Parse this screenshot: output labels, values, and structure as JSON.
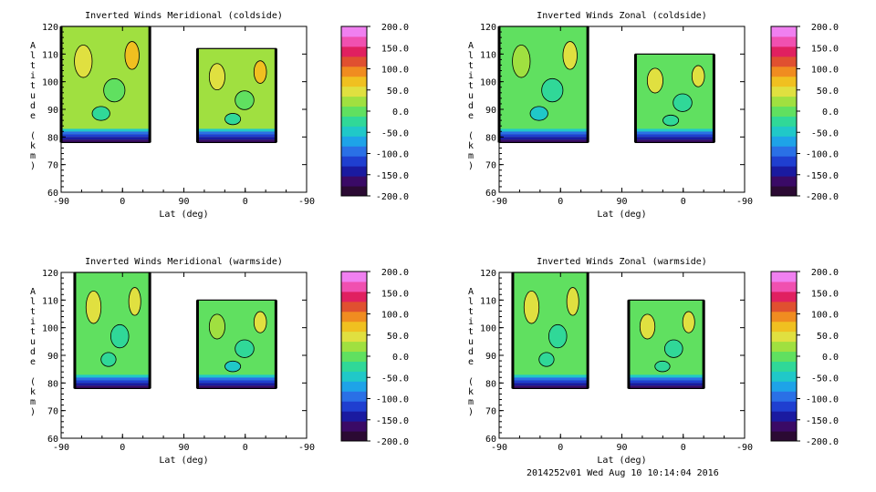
{
  "footer": "2014252v01 Wed Aug 10 10:14:04 2016",
  "palette": [
    "#2b0a33",
    "#3a0a66",
    "#1a1aa0",
    "#1f3fd0",
    "#2a70e6",
    "#1ea3e8",
    "#20c8c8",
    "#30d898",
    "#60e060",
    "#a0e040",
    "#e0e040",
    "#f0c020",
    "#f08c20",
    "#e05030",
    "#e02060",
    "#f050b0",
    "#f080f0"
  ],
  "panels": [
    {
      "title": "Inverted Winds Meridional (coldside)",
      "xlabel": "Lat (deg)",
      "ylabel": "Altitude (km)",
      "x_ticks": [
        "-90",
        "0",
        "90",
        "0",
        "-90"
      ],
      "y_ticks": [
        "60",
        "70",
        "80",
        "90",
        "100",
        "110",
        "120"
      ],
      "cbar_ticks": [
        "200.0",
        "150.0",
        "100.0",
        "50.0",
        "0.0",
        "-50.0",
        "-100.0",
        "-150.0",
        "-200.0"
      ],
      "segments": [
        {
          "x0": -90,
          "x1": 40,
          "top": 120,
          "bottom": 78,
          "mean": 18
        },
        {
          "x0": 110,
          "x1": 225,
          "top": 112,
          "bottom": 78,
          "mean": 18
        }
      ]
    },
    {
      "title": "Inverted Winds Zonal (coldside)",
      "xlabel": "Lat (deg)",
      "ylabel": "Altitude (km)",
      "x_ticks": [
        "-90",
        "0",
        "90",
        "0",
        "-90"
      ],
      "y_ticks": [
        "60",
        "70",
        "80",
        "90",
        "100",
        "110",
        "120"
      ],
      "cbar_ticks": [
        "200.0",
        "150.0",
        "100.0",
        "50.0",
        "0.0",
        "-50.0",
        "-100.0",
        "-150.0",
        "-200.0"
      ],
      "segments": [
        {
          "x0": -90,
          "x1": 40,
          "top": 120,
          "bottom": 78,
          "mean": 0
        },
        {
          "x0": 110,
          "x1": 225,
          "top": 110,
          "bottom": 78,
          "mean": 10
        }
      ]
    },
    {
      "title": "Inverted Winds Meridional (warmside)",
      "xlabel": "Lat (deg)",
      "ylabel": "Altitude (km)",
      "x_ticks": [
        "-90",
        "0",
        "90",
        "0",
        "-90"
      ],
      "y_ticks": [
        "60",
        "70",
        "80",
        "90",
        "100",
        "110",
        "120"
      ],
      "cbar_ticks": [
        "200.0",
        "150.0",
        "100.0",
        "50.0",
        "0.0",
        "-50.0",
        "-100.0",
        "-150.0",
        "-200.0"
      ],
      "segments": [
        {
          "x0": -70,
          "x1": 40,
          "top": 120,
          "bottom": 78,
          "mean": 12
        },
        {
          "x0": 110,
          "x1": 225,
          "top": 110,
          "bottom": 78,
          "mean": -5
        }
      ]
    },
    {
      "title": "Inverted Winds Zonal (warmside)",
      "xlabel": "Lat (deg)",
      "ylabel": "Altitude (km)",
      "x_ticks": [
        "-90",
        "0",
        "90",
        "0",
        "-90"
      ],
      "y_ticks": [
        "60",
        "70",
        "80",
        "90",
        "100",
        "110",
        "120"
      ],
      "cbar_ticks": [
        "200.0",
        "150.0",
        "100.0",
        "50.0",
        "0.0",
        "-50.0",
        "-100.0",
        "-150.0",
        "-200.0"
      ],
      "segments": [
        {
          "x0": -70,
          "x1": 40,
          "top": 120,
          "bottom": 78,
          "mean": 5
        },
        {
          "x0": 100,
          "x1": 210,
          "top": 110,
          "bottom": 78,
          "mean": 10
        }
      ]
    }
  ],
  "chart_data": [
    {
      "type": "heatmap",
      "title": "Inverted Winds Meridional (coldside)",
      "xlabel": "Lat (deg)",
      "ylabel": "Altitude (km)",
      "xlim": [
        -90,
        270
      ],
      "x_tick_labels": [
        "-90",
        "0",
        "90",
        "0",
        "-90"
      ],
      "ylim": [
        60,
        120
      ],
      "colorbar_range": [
        -200,
        200
      ],
      "colorbar_tick_labels": [
        "200.0",
        "150.0",
        "100.0",
        "50.0",
        "0.0",
        "-50.0",
        "-100.0",
        "-150.0",
        "-200.0"
      ]
    },
    {
      "type": "heatmap",
      "title": "Inverted Winds Zonal (coldside)",
      "xlabel": "Lat (deg)",
      "ylabel": "Altitude (km)",
      "xlim": [
        -90,
        270
      ],
      "x_tick_labels": [
        "-90",
        "0",
        "90",
        "0",
        "-90"
      ],
      "ylim": [
        60,
        120
      ],
      "colorbar_range": [
        -200,
        200
      ],
      "colorbar_tick_labels": [
        "200.0",
        "150.0",
        "100.0",
        "50.0",
        "0.0",
        "-50.0",
        "-100.0",
        "-150.0",
        "-200.0"
      ]
    },
    {
      "type": "heatmap",
      "title": "Inverted Winds Meridional (warmside)",
      "xlabel": "Lat (deg)",
      "ylabel": "Altitude (km)",
      "xlim": [
        -90,
        270
      ],
      "x_tick_labels": [
        "-90",
        "0",
        "90",
        "0",
        "-90"
      ],
      "ylim": [
        60,
        120
      ],
      "colorbar_range": [
        -200,
        200
      ],
      "colorbar_tick_labels": [
        "200.0",
        "150.0",
        "100.0",
        "50.0",
        "0.0",
        "-50.0",
        "-100.0",
        "-150.0",
        "-200.0"
      ]
    },
    {
      "type": "heatmap",
      "title": "Inverted Winds Zonal (warmside)",
      "xlabel": "Lat (deg)",
      "ylabel": "Altitude (km)",
      "xlim": [
        -90,
        270
      ],
      "x_tick_labels": [
        "-90",
        "0",
        "90",
        "0",
        "-90"
      ],
      "ylim": [
        60,
        120
      ],
      "colorbar_range": [
        -200,
        200
      ],
      "colorbar_tick_labels": [
        "200.0",
        "150.0",
        "100.0",
        "50.0",
        "0.0",
        "-50.0",
        "-100.0",
        "-150.0",
        "-200.0"
      ]
    }
  ]
}
